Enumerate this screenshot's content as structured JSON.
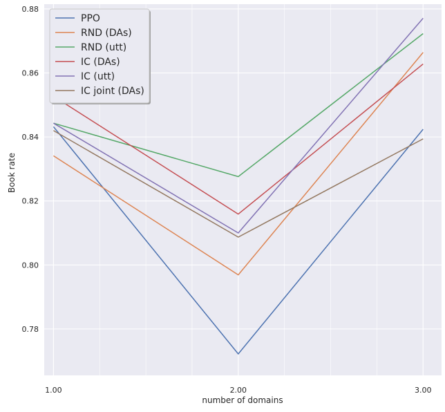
{
  "chart_data": {
    "type": "line",
    "xlabel": "number of domains",
    "ylabel": "Book rate",
    "x": [
      1,
      2,
      3
    ],
    "xlim": [
      0.95,
      3.1
    ],
    "ylim": [
      0.7655,
      0.8815
    ],
    "x_ticks": [
      1,
      2,
      3
    ],
    "x_tick_labels": [
      "1.00",
      "2.00",
      "3.00"
    ],
    "x_minor_gridlines": [
      1.25,
      1.5,
      1.75,
      2.25,
      2.5,
      2.75
    ],
    "y_ticks": [
      0.78,
      0.8,
      0.82,
      0.84,
      0.86,
      0.88
    ],
    "y_tick_labels": [
      "0.78",
      "0.80",
      "0.82",
      "0.84",
      "0.86",
      "0.88"
    ],
    "grid": true,
    "legend_position": "top-left",
    "series": [
      {
        "name": "PPO",
        "color": "#4c72b0",
        "values": [
          0.8432,
          0.7722,
          0.8424
        ]
      },
      {
        "name": "RND (DAs)",
        "color": "#dd8452",
        "values": [
          0.8341,
          0.7969,
          0.8664
        ]
      },
      {
        "name": "RND (utt)",
        "color": "#55a868",
        "values": [
          0.8443,
          0.8276,
          0.8723
        ]
      },
      {
        "name": "IC (DAs)",
        "color": "#c44e52",
        "values": [
          0.8527,
          0.8159,
          0.8628
        ]
      },
      {
        "name": "IC (utt)",
        "color": "#8172b3",
        "values": [
          0.8443,
          0.81,
          0.8771
        ]
      },
      {
        "name": "IC joint (DAs)",
        "color": "#937860",
        "values": [
          0.842,
          0.8087,
          0.8394
        ]
      }
    ]
  }
}
